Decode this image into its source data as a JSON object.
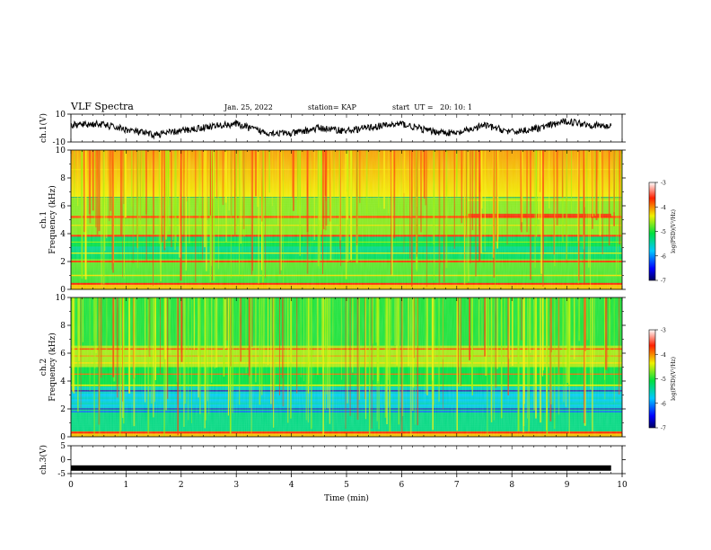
{
  "header": {
    "title": "VLF Spectra",
    "date": "Jan. 25, 2022",
    "station": "station= KAP",
    "start": "start  UT =   20: 10: 1"
  },
  "chart_data": [
    {
      "type": "line",
      "ylabel": "ch.1(V)",
      "ylim": [
        -10,
        10
      ],
      "yticks": [
        "10",
        "-10"
      ],
      "xlim": [
        0,
        10
      ],
      "trace": "noisy waveform oscillating roughly between -8 and 8 V",
      "x": [
        0,
        0.5,
        1,
        1.5,
        2,
        2.5,
        3,
        3.5,
        4,
        4.5,
        5,
        5.5,
        6,
        6.5,
        7,
        7.5,
        8,
        8.5,
        9,
        9.5,
        9.8
      ],
      "y": [
        2,
        3,
        -1,
        -5,
        -2,
        1,
        3,
        -3,
        -4,
        0,
        -2,
        1,
        3,
        -2,
        -4,
        2,
        -3,
        0,
        5,
        2,
        1
      ]
    },
    {
      "type": "heatmap",
      "ylabel": "ch.1\nFrequency (kHz)",
      "ylim": [
        0,
        10
      ],
      "yticks": [
        "0",
        "2",
        "4",
        "6",
        "8",
        "10"
      ],
      "xlim": [
        0,
        10
      ],
      "colorbar_label": "log(PSD)(V²/Hz)",
      "colorbar_ticks": [
        "-3",
        "-4",
        "-5",
        "-6",
        "-7"
      ]
    },
    {
      "type": "heatmap",
      "ylabel": "ch.2\nFrequency (kHz)",
      "ylim": [
        0,
        10
      ],
      "yticks": [
        "0",
        "2",
        "4",
        "6",
        "8",
        "10"
      ],
      "xlim": [
        0,
        10
      ],
      "colorbar_label": "log(PSD)(V²/Hz)",
      "colorbar_ticks": [
        "-3",
        "-4",
        "-5",
        "-6",
        "-7"
      ]
    },
    {
      "type": "line",
      "ylabel": "ch.3(V)",
      "ylim": [
        -5,
        5
      ],
      "yticks": [
        "5",
        "0",
        "-5"
      ],
      "xlim": [
        0,
        10
      ],
      "xticks": [
        "0",
        "1",
        "2",
        "3",
        "4",
        "5",
        "6",
        "7",
        "8",
        "9",
        "10"
      ],
      "xlabel": "Time (min)",
      "x": [
        0,
        9.8
      ],
      "y": [
        -3,
        -3
      ]
    }
  ]
}
